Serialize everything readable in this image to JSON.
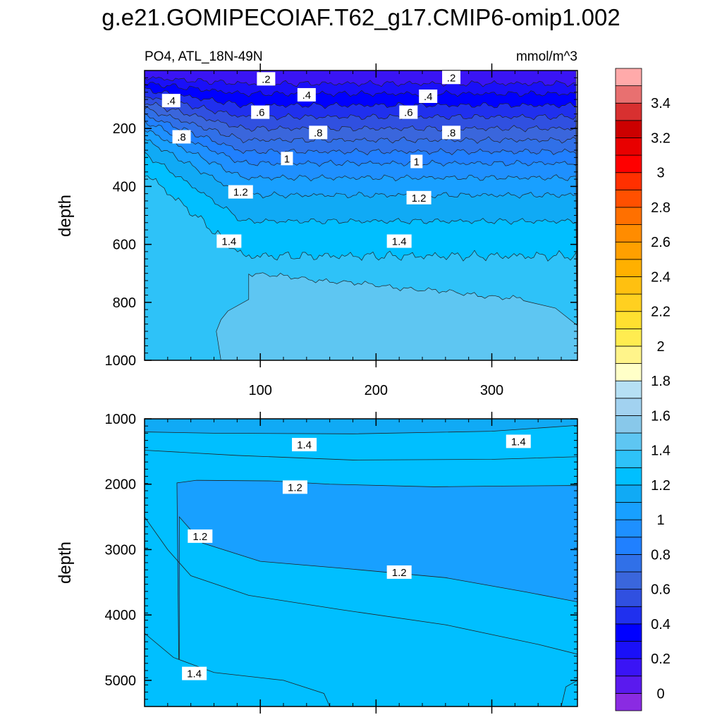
{
  "chart_data": {
    "type": "contour",
    "title": "g.e21.GOMIPECOIAF.T62_g17.CMIP6-omip1.002",
    "subtitle_left": "PO4, ATL_18N-49N",
    "subtitle_right": "mmol/m^3",
    "xlabel": "",
    "xlim": [
      0,
      374
    ],
    "x_ticks": [
      "100",
      "200",
      "300"
    ],
    "x_tick_values": [
      100,
      200,
      300
    ],
    "panels": [
      {
        "name": "upper",
        "ylabel": "depth",
        "ylim": [
          1000,
          0
        ],
        "y_ticks": [
          "200",
          "400",
          "600",
          "800",
          "1000"
        ],
        "y_tick_values": [
          200,
          400,
          600,
          800,
          1000
        ],
        "fill_bands": [
          {
            "top_depth": 0,
            "value": 0.2
          },
          {
            "top_depth": 45,
            "value": 0.3
          },
          {
            "top_depth": 80,
            "value": 0.4
          },
          {
            "top_depth": 120,
            "value": 0.5
          },
          {
            "top_depth": 160,
            "value": 0.6
          },
          {
            "top_depth": 200,
            "value": 0.7
          },
          {
            "top_depth": 240,
            "value": 0.8
          },
          {
            "top_depth": 280,
            "value": 0.9
          },
          {
            "top_depth": 320,
            "value": 1.0
          },
          {
            "top_depth": 370,
            "value": 1.1
          },
          {
            "top_depth": 430,
            "value": 1.2
          },
          {
            "top_depth": 520,
            "value": 1.3
          },
          {
            "top_depth": 640,
            "value": 1.4
          },
          {
            "top_depth": 790,
            "value": 1.5
          }
        ],
        "contour_labels": [
          {
            "text": ".2",
            "x": 105,
            "depth": 30
          },
          {
            "text": ".2",
            "x": 265,
            "depth": 25
          },
          {
            "text": ".4",
            "x": 23,
            "depth": 105
          },
          {
            "text": ".4",
            "x": 140,
            "depth": 85
          },
          {
            "text": ".4",
            "x": 245,
            "depth": 90
          },
          {
            "text": ".6",
            "x": 100,
            "depth": 145
          },
          {
            "text": ".6",
            "x": 228,
            "depth": 145
          },
          {
            "text": ".8",
            "x": 32,
            "depth": 230
          },
          {
            "text": ".8",
            "x": 150,
            "depth": 215
          },
          {
            "text": ".8",
            "x": 265,
            "depth": 215
          },
          {
            "text": "1",
            "x": 123,
            "depth": 305
          },
          {
            "text": "1",
            "x": 235,
            "depth": 315
          },
          {
            "text": "1.2",
            "x": 83,
            "depth": 420
          },
          {
            "text": "1.2",
            "x": 237,
            "depth": 440
          },
          {
            "text": "1.4",
            "x": 73,
            "depth": 590
          },
          {
            "text": "1.4",
            "x": 220,
            "depth": 590
          }
        ]
      },
      {
        "name": "lower",
        "ylabel": "depth",
        "ylim": [
          5400,
          1000
        ],
        "y_ticks": [
          "1000",
          "2000",
          "3000",
          "4000",
          "5000"
        ],
        "y_tick_values": [
          1000,
          2000,
          3000,
          4000,
          5000
        ],
        "contour_labels": [
          {
            "text": "1.4",
            "x": 138,
            "depth": 1400
          },
          {
            "text": "1.4",
            "x": 323,
            "depth": 1350
          },
          {
            "text": "1.2",
            "x": 130,
            "depth": 2050
          },
          {
            "text": "1.2",
            "x": 48,
            "depth": 2800
          },
          {
            "text": "1.2",
            "x": 220,
            "depth": 3350
          },
          {
            "text": "1.4",
            "x": 43,
            "depth": 4900
          }
        ]
      }
    ],
    "colorbar": {
      "labels": [
        "0",
        "0.2",
        "0.4",
        "0.6",
        "0.8",
        "1",
        "1.2",
        "1.4",
        "1.6",
        "1.8",
        "2",
        "2.2",
        "2.4",
        "2.6",
        "2.8",
        "3",
        "3.2",
        "3.4"
      ],
      "levels": [
        0,
        0.1,
        0.2,
        0.3,
        0.4,
        0.5,
        0.6,
        0.7,
        0.8,
        0.9,
        1.0,
        1.1,
        1.2,
        1.3,
        1.4,
        1.5,
        1.6,
        1.7,
        1.8,
        1.9,
        2.0,
        2.1,
        2.2,
        2.3,
        2.4,
        2.5,
        2.6,
        2.7,
        2.8,
        2.9,
        3.0,
        3.1,
        3.2,
        3.3,
        3.4,
        3.5,
        3.6
      ],
      "colors": [
        "#8a2be2",
        "#5a1aee",
        "#3a14f5",
        "#1a10f8",
        "#0000ff",
        "#2030ee",
        "#3050e0",
        "#3a66dc",
        "#3070e8",
        "#2080ff",
        "#1e90ff",
        "#18a0ff",
        "#10aaf5",
        "#00bfff",
        "#2ec2f8",
        "#5ec6f2",
        "#88c8ea",
        "#a2d2f0",
        "#b6e0f4",
        "#ffffc8",
        "#fff48a",
        "#ffec50",
        "#ffe030",
        "#ffd020",
        "#ffc010",
        "#ffb000",
        "#ffa000",
        "#ff8c00",
        "#ff7000",
        "#ff5000",
        "#ff3000",
        "#ff0000",
        "#e80000",
        "#cc0000",
        "#d83030",
        "#e87070",
        "#ffaaaa"
      ]
    }
  }
}
